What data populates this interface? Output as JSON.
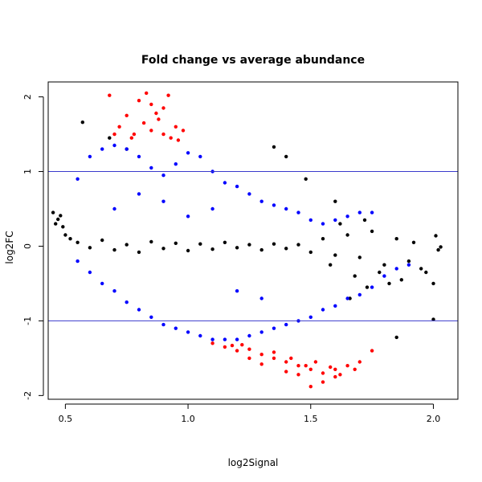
{
  "chart_data": {
    "type": "scatter",
    "title": "Fold change vs average abundance",
    "xlabel": "log2Signal",
    "ylabel": "log2FC",
    "xlim": [
      0.43,
      2.1
    ],
    "ylim": [
      -2.05,
      2.2
    ],
    "x_ticks": [
      0.5,
      1.0,
      1.5,
      2.0
    ],
    "x_tick_labels": [
      "0.5",
      "1.0",
      "1.5",
      "2.0"
    ],
    "y_ticks": [
      -2,
      -1,
      0,
      1,
      2
    ],
    "y_tick_labels": [
      "-2",
      "-1",
      "0",
      "1",
      "2"
    ],
    "reference_lines": [
      {
        "axis": "y",
        "value": 1,
        "color": "#3b3bcc"
      },
      {
        "axis": "y",
        "value": -1,
        "color": "#3b3bcc"
      }
    ],
    "grid": false,
    "legend": "none",
    "series": [
      {
        "color": "#000000",
        "points": [
          [
            0.45,
            0.45
          ],
          [
            0.46,
            0.3
          ],
          [
            0.47,
            0.36
          ],
          [
            0.48,
            0.41
          ],
          [
            0.49,
            0.26
          ],
          [
            0.5,
            0.15
          ],
          [
            0.52,
            0.1
          ],
          [
            0.55,
            0.05
          ],
          [
            0.6,
            -0.02
          ],
          [
            0.65,
            0.08
          ],
          [
            0.7,
            -0.05
          ],
          [
            0.75,
            0.02
          ],
          [
            0.8,
            -0.08
          ],
          [
            0.85,
            0.06
          ],
          [
            0.9,
            -0.03
          ],
          [
            0.95,
            0.04
          ],
          [
            1.0,
            -0.06
          ],
          [
            1.05,
            0.03
          ],
          [
            1.1,
            -0.04
          ],
          [
            1.15,
            0.05
          ],
          [
            1.2,
            -0.02
          ],
          [
            1.25,
            0.02
          ],
          [
            1.3,
            -0.05
          ],
          [
            1.35,
            0.03
          ],
          [
            1.4,
            -0.03
          ],
          [
            1.45,
            0.02
          ],
          [
            1.5,
            -0.08
          ],
          [
            1.55,
            0.1
          ],
          [
            1.6,
            -0.12
          ],
          [
            1.65,
            0.15
          ],
          [
            1.7,
            -0.15
          ],
          [
            1.75,
            0.2
          ],
          [
            1.8,
            -0.25
          ],
          [
            1.85,
            0.1
          ],
          [
            1.9,
            -0.2
          ],
          [
            1.95,
            -0.3
          ],
          [
            2.0,
            -0.5
          ],
          [
            2.01,
            0.14
          ],
          [
            2.02,
            -0.05
          ],
          [
            2.03,
            -0.01
          ],
          [
            2.0,
            -0.98
          ],
          [
            1.97,
            -0.35
          ],
          [
            1.92,
            0.05
          ],
          [
            1.87,
            -0.45
          ],
          [
            1.82,
            -0.5
          ],
          [
            1.78,
            -0.35
          ],
          [
            1.72,
            0.35
          ],
          [
            1.68,
            -0.4
          ],
          [
            1.62,
            0.3
          ],
          [
            1.58,
            -0.25
          ],
          [
            0.57,
            1.66
          ],
          [
            0.68,
            1.45
          ],
          [
            1.35,
            1.33
          ],
          [
            1.4,
            1.2
          ],
          [
            0.75,
            1.3
          ],
          [
            1.48,
            0.9
          ],
          [
            1.6,
            0.6
          ],
          [
            1.66,
            -0.7
          ],
          [
            1.73,
            -0.55
          ],
          [
            1.85,
            -1.22
          ]
        ]
      },
      {
        "color": "#0000ff",
        "points": [
          [
            0.55,
            0.9
          ],
          [
            0.6,
            1.2
          ],
          [
            0.65,
            1.3
          ],
          [
            0.7,
            1.35
          ],
          [
            0.75,
            1.3
          ],
          [
            0.8,
            1.2
          ],
          [
            0.85,
            1.05
          ],
          [
            0.9,
            0.95
          ],
          [
            0.95,
            1.1
          ],
          [
            1.0,
            1.25
          ],
          [
            1.05,
            1.2
          ],
          [
            1.1,
            1.0
          ],
          [
            1.15,
            0.85
          ],
          [
            1.2,
            0.8
          ],
          [
            1.25,
            0.7
          ],
          [
            1.3,
            0.6
          ],
          [
            1.35,
            0.55
          ],
          [
            1.4,
            0.5
          ],
          [
            1.45,
            0.45
          ],
          [
            1.5,
            0.35
          ],
          [
            1.55,
            0.3
          ],
          [
            1.6,
            0.35
          ],
          [
            1.65,
            0.4
          ],
          [
            1.7,
            0.45
          ],
          [
            1.75,
            0.45
          ],
          [
            0.55,
            -0.2
          ],
          [
            0.6,
            -0.35
          ],
          [
            0.65,
            -0.5
          ],
          [
            0.7,
            -0.6
          ],
          [
            0.75,
            -0.75
          ],
          [
            0.8,
            -0.85
          ],
          [
            0.85,
            -0.95
          ],
          [
            0.9,
            -1.05
          ],
          [
            0.95,
            -1.1
          ],
          [
            1.0,
            -1.15
          ],
          [
            1.05,
            -1.2
          ],
          [
            1.1,
            -1.25
          ],
          [
            1.15,
            -1.25
          ],
          [
            1.2,
            -1.25
          ],
          [
            1.25,
            -1.2
          ],
          [
            1.3,
            -1.15
          ],
          [
            1.35,
            -1.1
          ],
          [
            1.4,
            -1.05
          ],
          [
            1.45,
            -1.0
          ],
          [
            1.5,
            -0.95
          ],
          [
            1.55,
            -0.85
          ],
          [
            1.6,
            -0.8
          ],
          [
            1.65,
            -0.7
          ],
          [
            1.7,
            -0.65
          ],
          [
            1.75,
            -0.55
          ],
          [
            1.8,
            -0.4
          ],
          [
            1.85,
            -0.3
          ],
          [
            1.9,
            -0.25
          ],
          [
            0.7,
            0.5
          ],
          [
            0.8,
            0.7
          ],
          [
            0.9,
            0.6
          ],
          [
            1.0,
            0.4
          ],
          [
            1.1,
            0.5
          ],
          [
            1.2,
            -0.6
          ],
          [
            1.3,
            -0.7
          ]
        ]
      },
      {
        "color": "#ff0000",
        "points": [
          [
            0.68,
            2.02
          ],
          [
            0.75,
            1.75
          ],
          [
            0.8,
            1.95
          ],
          [
            0.83,
            2.05
          ],
          [
            0.85,
            1.9
          ],
          [
            0.87,
            1.78
          ],
          [
            0.9,
            1.85
          ],
          [
            0.92,
            2.02
          ],
          [
            0.95,
            1.6
          ],
          [
            0.98,
            1.55
          ],
          [
            0.72,
            1.6
          ],
          [
            0.78,
            1.5
          ],
          [
            0.82,
            1.65
          ],
          [
            0.88,
            1.7
          ],
          [
            0.9,
            1.5
          ],
          [
            0.77,
            1.45
          ],
          [
            0.85,
            1.55
          ],
          [
            0.93,
            1.45
          ],
          [
            0.7,
            1.5
          ],
          [
            0.96,
            1.42
          ],
          [
            1.1,
            -1.3
          ],
          [
            1.15,
            -1.35
          ],
          [
            1.2,
            -1.4
          ],
          [
            1.25,
            -1.38
          ],
          [
            1.3,
            -1.45
          ],
          [
            1.35,
            -1.5
          ],
          [
            1.4,
            -1.55
          ],
          [
            1.45,
            -1.6
          ],
          [
            1.5,
            -1.65
          ],
          [
            1.55,
            -1.7
          ],
          [
            1.6,
            -1.65
          ],
          [
            1.65,
            -1.6
          ],
          [
            1.7,
            -1.55
          ],
          [
            1.5,
            -1.88
          ],
          [
            1.45,
            -1.72
          ],
          [
            1.55,
            -1.82
          ],
          [
            1.6,
            -1.75
          ],
          [
            1.4,
            -1.68
          ],
          [
            1.3,
            -1.58
          ],
          [
            1.75,
            -1.4
          ],
          [
            1.25,
            -1.5
          ],
          [
            1.35,
            -1.42
          ],
          [
            1.42,
            -1.5
          ],
          [
            1.48,
            -1.6
          ],
          [
            1.52,
            -1.55
          ],
          [
            1.58,
            -1.62
          ],
          [
            1.62,
            -1.72
          ],
          [
            1.68,
            -1.65
          ],
          [
            1.22,
            -1.32
          ],
          [
            1.18,
            -1.33
          ]
        ]
      }
    ]
  }
}
